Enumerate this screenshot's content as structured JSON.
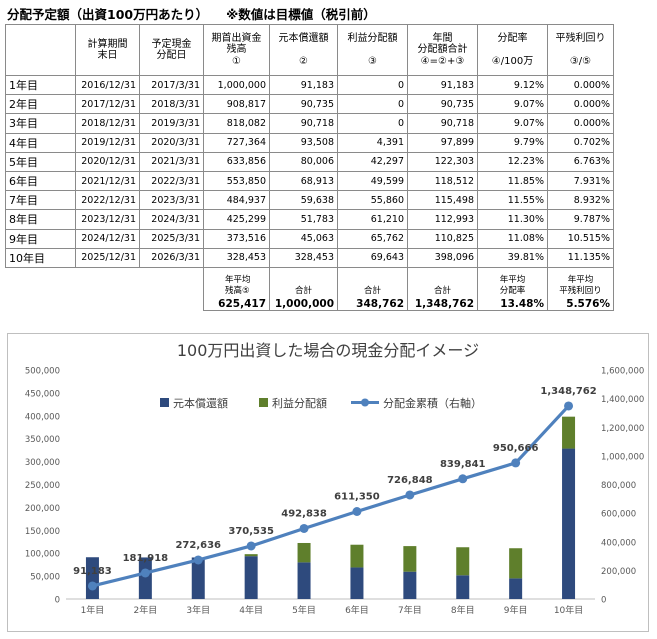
{
  "heading": {
    "title": "分配予定額（出資100万円あたり）",
    "note": "※数値は目標値（税引前）"
  },
  "table": {
    "headers": [
      [
        "",
        ""
      ],
      [
        "計算期間",
        "末日"
      ],
      [
        "予定現金",
        "分配日"
      ],
      [
        "期首出資金",
        "残高",
        "①"
      ],
      [
        "元本償還額",
        "",
        "②"
      ],
      [
        "利益分配額",
        "",
        "③"
      ],
      [
        "年間",
        "分配額合計",
        "④=②+③"
      ],
      [
        "分配率",
        "",
        "④/100万"
      ],
      [
        "平残利回り",
        "",
        "③/⑤"
      ]
    ],
    "rows": [
      [
        "1年目",
        "2016/12/31",
        "2017/3/31",
        "1,000,000",
        "91,183",
        "0",
        "91,183",
        "9.12%",
        "0.000%"
      ],
      [
        "2年目",
        "2017/12/31",
        "2018/3/31",
        "908,817",
        "90,735",
        "0",
        "90,735",
        "9.07%",
        "0.000%"
      ],
      [
        "3年目",
        "2018/12/31",
        "2019/3/31",
        "818,082",
        "90,718",
        "0",
        "90,718",
        "9.07%",
        "0.000%"
      ],
      [
        "4年目",
        "2019/12/31",
        "2020/3/31",
        "727,364",
        "93,508",
        "4,391",
        "97,899",
        "9.79%",
        "0.702%"
      ],
      [
        "5年目",
        "2020/12/31",
        "2021/3/31",
        "633,856",
        "80,006",
        "42,297",
        "122,303",
        "12.23%",
        "6.763%"
      ],
      [
        "6年目",
        "2021/12/31",
        "2022/3/31",
        "553,850",
        "68,913",
        "49,599",
        "118,512",
        "11.85%",
        "7.931%"
      ],
      [
        "7年目",
        "2022/12/31",
        "2023/3/31",
        "484,937",
        "59,638",
        "55,860",
        "115,498",
        "11.55%",
        "8.932%"
      ],
      [
        "8年目",
        "2023/12/31",
        "2024/3/31",
        "425,299",
        "51,783",
        "61,210",
        "112,993",
        "11.30%",
        "9.787%"
      ],
      [
        "9年目",
        "2024/12/31",
        "2025/3/31",
        "373,516",
        "45,063",
        "65,762",
        "110,825",
        "11.08%",
        "10.515%"
      ],
      [
        "10年目",
        "2025/12/31",
        "2026/3/31",
        "328,453",
        "328,453",
        "69,643",
        "398,096",
        "39.81%",
        "11.135%"
      ]
    ],
    "footer": {
      "avg_balance_label": [
        "年平均",
        "残高⑤"
      ],
      "avg_balance": "625,417",
      "principal_label": "合計",
      "principal_total": "1,000,000",
      "profit_label": "合計",
      "profit_total": "348,762",
      "annual_label": "合計",
      "annual_total": "1,348,762",
      "rate_label": [
        "年平均",
        "分配率"
      ],
      "rate_avg": "13.48%",
      "yield_label": [
        "年平均",
        "平残利回り"
      ],
      "yield_avg": "5.576%"
    }
  },
  "chart_data": {
    "type": "bar",
    "title": "100万円出資した場合の現金分配イメージ",
    "categories": [
      "1年目",
      "2年目",
      "3年目",
      "4年目",
      "5年目",
      "6年目",
      "7年目",
      "8年目",
      "9年目",
      "10年目"
    ],
    "series": [
      {
        "name": "元本償還額",
        "kind": "stacked-bar",
        "axis": "left",
        "color": "#2e4a7d",
        "values": [
          91183,
          90735,
          90718,
          93508,
          80006,
          68913,
          59638,
          51783,
          45063,
          328453
        ]
      },
      {
        "name": "利益分配額",
        "kind": "stacked-bar",
        "axis": "left",
        "color": "#5f7f2c",
        "values": [
          0,
          0,
          0,
          4391,
          42297,
          49599,
          55860,
          61210,
          65762,
          69643
        ]
      },
      {
        "name": "分配金累積（右軸）",
        "kind": "line",
        "axis": "right",
        "color": "#4f81bd",
        "values": [
          91183,
          181918,
          272636,
          370535,
          492838,
          611350,
          726848,
          839841,
          950666,
          1348762
        ],
        "labels": [
          "91,183",
          "181,918",
          "272,636",
          "370,535",
          "492,838",
          "611,350",
          "726,848",
          "839,841",
          "950,666",
          "1,348,762"
        ]
      }
    ],
    "ylim_left": [
      0,
      500000
    ],
    "ylim_right": [
      0,
      1600000
    ],
    "yticks_left": [
      "0",
      "50,000",
      "100,000",
      "150,000",
      "200,000",
      "250,000",
      "300,000",
      "350,000",
      "400,000",
      "450,000",
      "500,000"
    ],
    "yticks_right": [
      "0",
      "200,000",
      "400,000",
      "600,000",
      "800,000",
      "1,000,000",
      "1,200,000",
      "1,400,000",
      "1,600,000"
    ],
    "grid": false,
    "legend": "top"
  }
}
